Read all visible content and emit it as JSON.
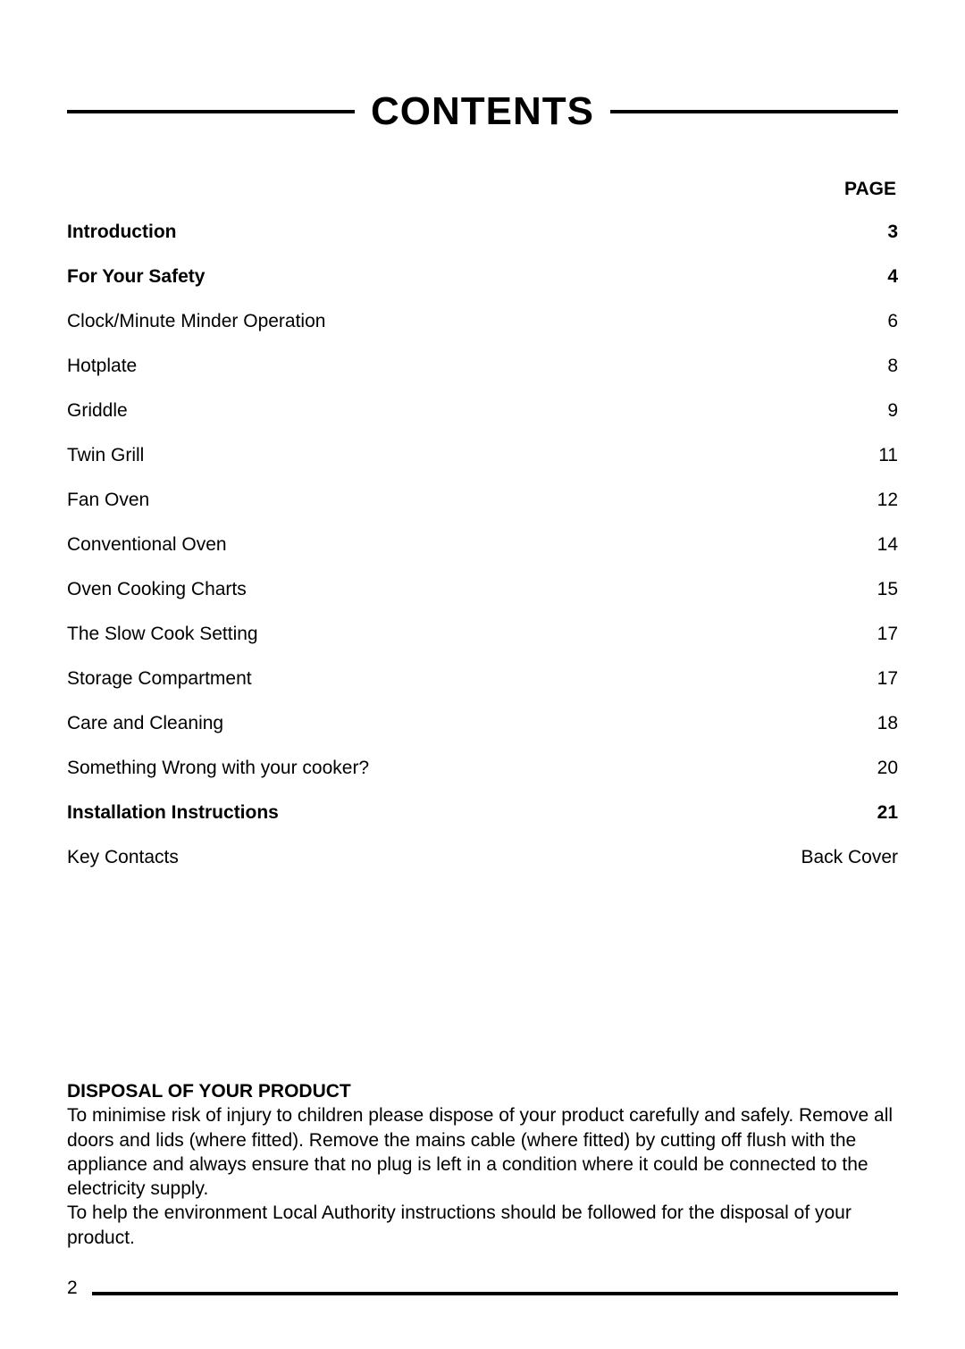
{
  "title": "CONTENTS",
  "page_header": "PAGE",
  "toc": [
    {
      "label": "Introduction",
      "page": "3",
      "bold": true
    },
    {
      "label": "For Your Safety",
      "page": "4",
      "bold": true
    },
    {
      "label": "Clock/Minute Minder Operation",
      "page": "6",
      "bold": false
    },
    {
      "label": "Hotplate",
      "page": "8",
      "bold": false
    },
    {
      "label": "Griddle",
      "page": "9",
      "bold": false
    },
    {
      "label": "Twin Grill",
      "page": "11",
      "bold": false
    },
    {
      "label": "Fan Oven",
      "page": "12",
      "bold": false
    },
    {
      "label": "Conventional Oven",
      "page": "14",
      "bold": false
    },
    {
      "label": "Oven Cooking Charts",
      "page": "15",
      "bold": false
    },
    {
      "label": "The Slow Cook Setting",
      "page": "17",
      "bold": false
    },
    {
      "label": "Storage Compartment",
      "page": "17",
      "bold": false
    },
    {
      "label": "Care and Cleaning",
      "page": "18",
      "bold": false
    },
    {
      "label": "Something Wrong with your cooker?",
      "page": "20",
      "bold": false
    },
    {
      "label": "Installation Instructions",
      "page": "21",
      "bold": true
    },
    {
      "label": "Key Contacts",
      "page": "Back Cover",
      "bold": false
    }
  ],
  "disposal": {
    "title": "DISPOSAL OF YOUR PRODUCT",
    "body": "To minimise risk of injury to children please dispose of your product carefully and safely.  Remove all doors and lids (where fitted).  Remove the mains cable (where fitted) by cutting off flush with the appliance and always ensure that no plug is left in a condition where it could be connected to the electricity supply.\nTo help the environment Local Authority instructions should be followed for the disposal of your product."
  },
  "footer_page": "2",
  "colors": {
    "text": "#000000",
    "background": "#ffffff"
  },
  "typography": {
    "title_fontsize": 44,
    "body_fontsize": 21
  }
}
